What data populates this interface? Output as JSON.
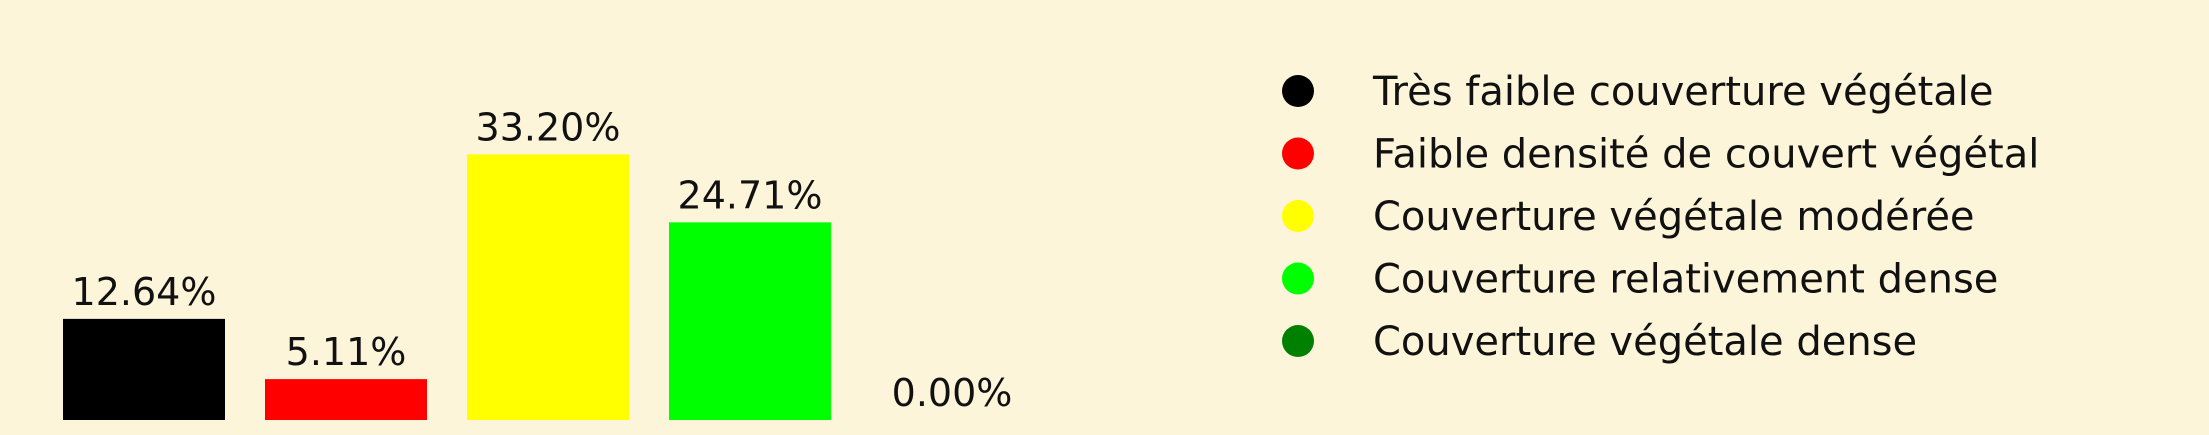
{
  "chart_data": {
    "type": "bar",
    "categories": [
      "Très faible couverture végétale",
      "Faible densité de couvert végétal",
      "Couverture végétale modérée",
      "Couverture relativement dense",
      "Couverture végétale dense"
    ],
    "values": [
      12.64,
      5.11,
      33.2,
      24.71,
      0.0
    ],
    "value_labels": [
      "12.64%",
      "5.11%",
      "33.20%",
      "24.71%",
      "0.00%"
    ],
    "colors": [
      "#000000",
      "#ff0000",
      "#ffff00",
      "#00ff00",
      "#008000"
    ],
    "ylim": [
      0,
      50
    ],
    "grid": false,
    "legend_placement": "right",
    "title": "",
    "xlabel": "",
    "ylabel": ""
  }
}
